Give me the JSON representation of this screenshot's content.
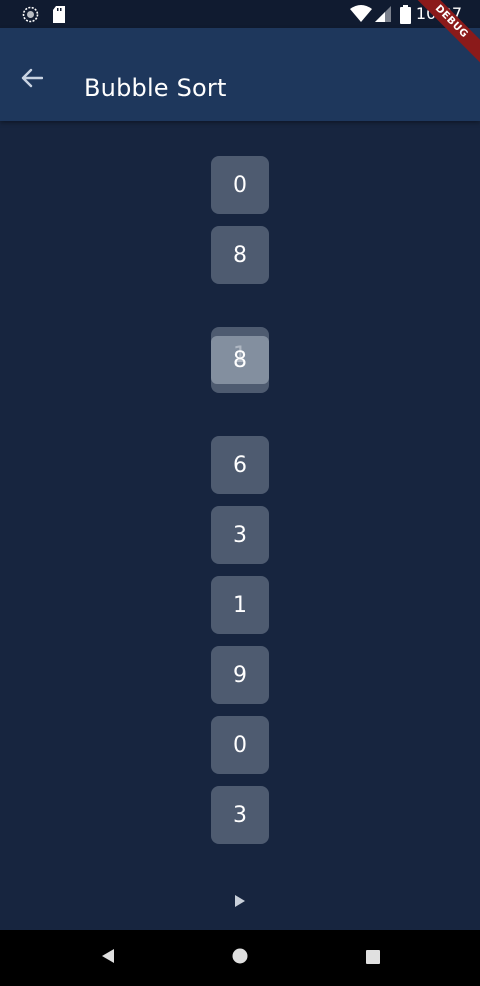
{
  "status_bar": {
    "time": "10:37",
    "icons": [
      "sync-icon",
      "sd-card-icon",
      "wifi-icon",
      "signal-icon",
      "battery-icon"
    ]
  },
  "app_bar": {
    "title": "Bubble Sort",
    "back_icon": "arrow-back-icon",
    "debug_banner": "DEBUG",
    "color": "#1e375c"
  },
  "array": {
    "values": [
      "0",
      "8",
      "6",
      "3",
      "1",
      "9",
      "0",
      "3"
    ],
    "swapping_pair": [
      "1",
      "8"
    ],
    "tile_color": "#4e5b70",
    "background": "#17253f"
  },
  "controls": {
    "play_icon": "play-arrow-icon"
  },
  "nav_bar": {
    "icons": [
      "nav-back-icon",
      "nav-home-icon",
      "nav-recents-icon"
    ]
  }
}
